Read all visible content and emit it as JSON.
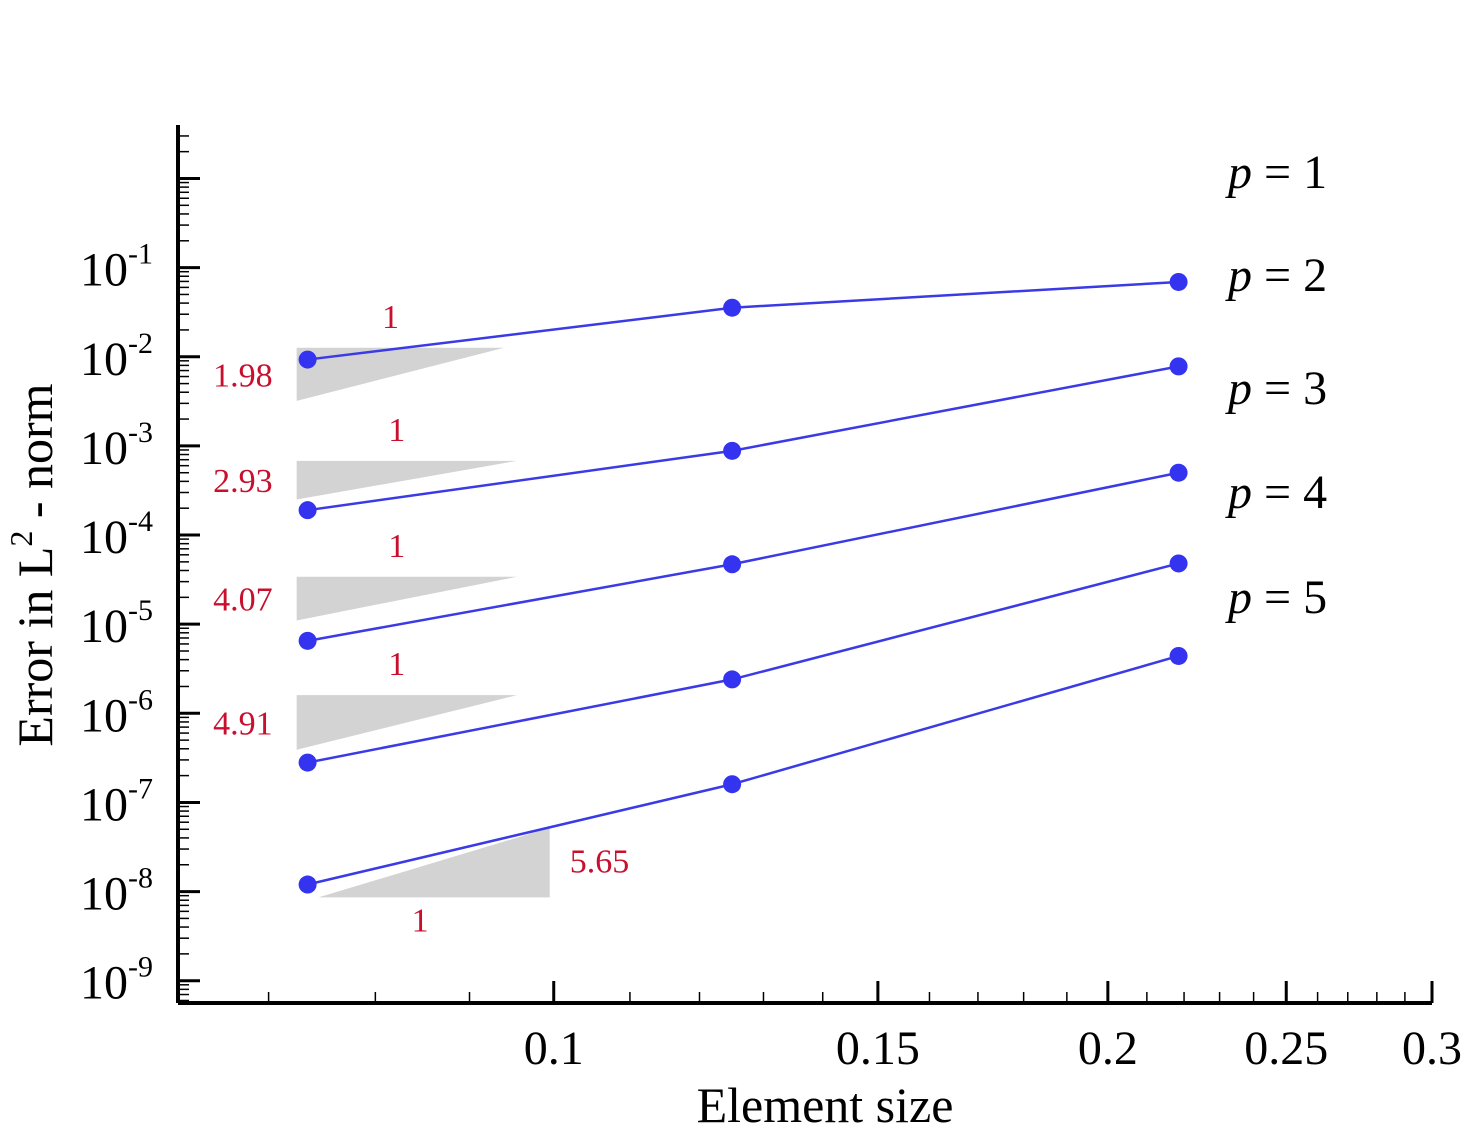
{
  "chart_data": {
    "type": "line",
    "xscale": "log",
    "yscale": "log",
    "xlabel": "Element size",
    "ylabel_pre": "Error in L",
    "ylabel_sup": "2",
    "ylabel_post": " - norm",
    "xlim": [
      0.0625,
      0.3
    ],
    "ylim_exp": [
      -9.25,
      0.6
    ],
    "x_ticks": [
      {
        "value": 0.1,
        "label": "0.1"
      },
      {
        "value": 0.15,
        "label": "0.15"
      },
      {
        "value": 0.2,
        "label": "0.2"
      },
      {
        "value": 0.25,
        "label": "0.25"
      },
      {
        "value": 0.3,
        "label": "0.3"
      }
    ],
    "y_ticks": [
      {
        "exp": -1,
        "base": "10",
        "sup": "-1"
      },
      {
        "exp": -2,
        "base": "10",
        "sup": "-2"
      },
      {
        "exp": -3,
        "base": "10",
        "sup": "-3"
      },
      {
        "exp": -4,
        "base": "10",
        "sup": "-4"
      },
      {
        "exp": -5,
        "base": "10",
        "sup": "-5"
      },
      {
        "exp": -6,
        "base": "10",
        "sup": "-6"
      },
      {
        "exp": -7,
        "base": "10",
        "sup": "-7"
      },
      {
        "exp": -8,
        "base": "10",
        "sup": "-8"
      },
      {
        "exp": -9,
        "base": "10",
        "sup": "-9"
      }
    ],
    "line_color": "#3a3ae6",
    "marker_color": "#3434f0",
    "series": [
      {
        "label_var": "p",
        "label_rest": " = 1",
        "x": [
          0.0735,
          0.125,
          0.2185
        ],
        "y": [
          0.0093,
          0.0355,
          0.069
        ]
      },
      {
        "label_var": "p",
        "label_rest": " = 2",
        "x": [
          0.0735,
          0.125,
          0.2185
        ],
        "y": [
          0.00019,
          0.00088,
          0.0078
        ]
      },
      {
        "label_var": "p",
        "label_rest": " = 3",
        "x": [
          0.0735,
          0.125,
          0.2185
        ],
        "y": [
          6.5e-06,
          4.7e-05,
          0.0005
        ]
      },
      {
        "label_var": "p",
        "label_rest": " = 4",
        "x": [
          0.0735,
          0.125,
          0.2185
        ],
        "y": [
          2.8e-07,
          2.4e-06,
          4.8e-05
        ]
      },
      {
        "label_var": "p",
        "label_rest": " = 5",
        "x": [
          0.0735,
          0.125,
          0.2185
        ],
        "y": [
          1.2e-08,
          1.6e-07,
          4.4e-06
        ]
      }
    ],
    "slope_triangles": [
      {
        "rate": "1.98",
        "run": "1",
        "x_left": 0.0725,
        "x_right": 0.094,
        "y_top": 0.0032,
        "y_bottom": 0.0126,
        "orientation": "upper"
      },
      {
        "rate": "2.93",
        "run": "1",
        "x_left": 0.0725,
        "x_right": 0.0955,
        "y_top": 0.00025,
        "y_bottom": 0.00068,
        "orientation": "upper"
      },
      {
        "rate": "4.07",
        "run": "1",
        "x_left": 0.0725,
        "x_right": 0.0955,
        "y_top": 1.1e-05,
        "y_bottom": 3.4e-05,
        "orientation": "upper"
      },
      {
        "rate": "4.91",
        "run": "1",
        "x_left": 0.0725,
        "x_right": 0.0955,
        "y_top": 3.9e-07,
        "y_bottom": 1.6e-06,
        "orientation": "upper"
      },
      {
        "rate": "5.65",
        "run": "1",
        "x_left": 0.0745,
        "x_right": 0.0995,
        "y_top": 5.2e-08,
        "y_bottom": 8.6e-09,
        "orientation": "lower"
      }
    ]
  }
}
